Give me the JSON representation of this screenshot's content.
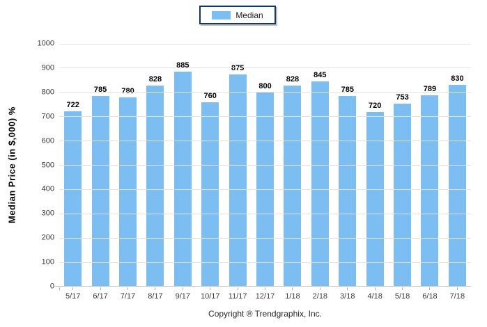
{
  "chart_data": {
    "type": "bar",
    "title": "",
    "categories": [
      "5/17",
      "6/17",
      "7/17",
      "8/17",
      "9/17",
      "10/17",
      "11/17",
      "12/17",
      "1/18",
      "2/18",
      "3/18",
      "4/18",
      "5/18",
      "6/18",
      "7/18"
    ],
    "series": [
      {
        "name": "Median",
        "values": [
          722,
          785,
          780,
          828,
          885,
          760,
          875,
          800,
          828,
          845,
          785,
          720,
          753,
          789,
          830
        ]
      }
    ],
    "xlabel": "",
    "ylabel": "Median Price (in $,000) %",
    "ylim": [
      0,
      1000
    ],
    "ytick_step": 100,
    "grid": true,
    "value_labels": true,
    "legend_position": "top-center",
    "bar_color": "#7CBDF2"
  },
  "colors": {
    "bar": "#7CBDF2",
    "legend_border": "#16365C",
    "gridline": "#E2E2E2",
    "axis_line": "#C6C6C6",
    "tick": "#B5B5B5",
    "axis_text": "#3A3A3A",
    "value_text": "#000000"
  },
  "footer": {
    "copyright": "Copyright ® Trendgraphix, Inc."
  }
}
